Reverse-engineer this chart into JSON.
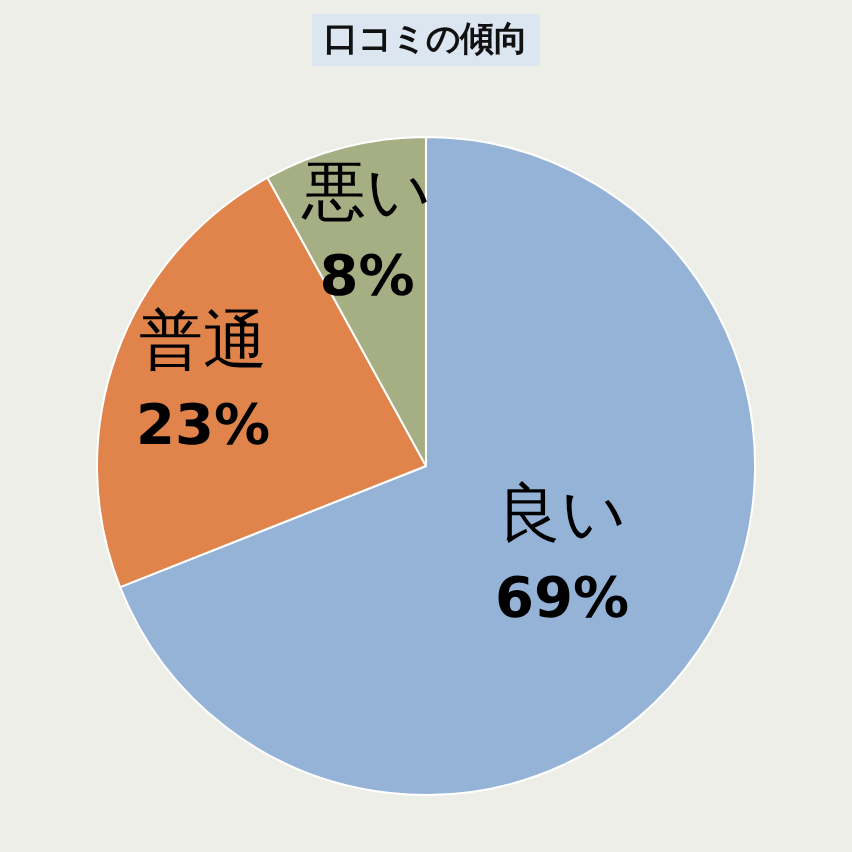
{
  "chart_data": {
    "type": "pie",
    "title": "口コミの傾向",
    "categories": [
      "良い",
      "普通",
      "悪い"
    ],
    "values": [
      69,
      23,
      8
    ],
    "value_labels": [
      "69%",
      "23%",
      "8%"
    ],
    "colors": [
      "#95b3d7",
      "#e0844b",
      "#a6ae84"
    ]
  }
}
